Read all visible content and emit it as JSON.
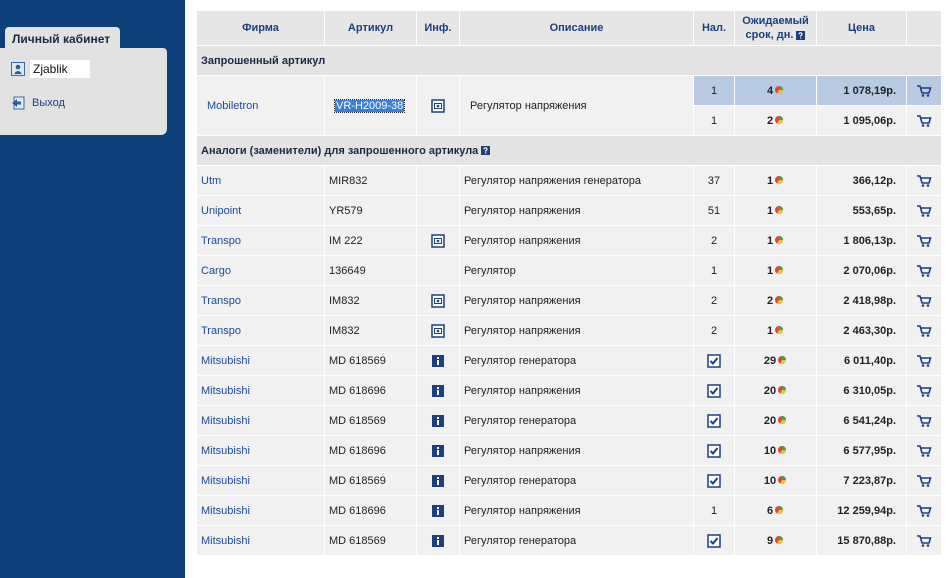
{
  "sidebar": {
    "tab_title": "Личный кабинет",
    "user": "Zjablik",
    "logout": "Выход"
  },
  "table": {
    "headers": [
      "Фирма",
      "Артикул",
      "Инф.",
      "Описание",
      "Нал.",
      "Ожидаемый срок, дн.",
      "Цена"
    ],
    "requested": {
      "section_title": "Запрошенный артикул",
      "firm": "Mobiletron",
      "article": "VR-H2009-38",
      "info": "photo",
      "description": "Регулятор напряжения",
      "offers": [
        {
          "stock": 1,
          "days": 4,
          "price": "1 078,19р."
        },
        {
          "stock": 1,
          "days": 2,
          "price": "1 095,06р."
        }
      ]
    },
    "analogs": {
      "section_title": "Аналоги (заменители) для запрошенного артикула",
      "rows": [
        {
          "firm": "Utm",
          "article": "MIR832",
          "info": null,
          "description": "Регулятор напряжения генератора",
          "stock": 37,
          "days": 1,
          "price": "366,12р."
        },
        {
          "firm": "Unipoint",
          "article": "YR579",
          "info": null,
          "description": "Регулятор напряжения",
          "stock": 51,
          "days": 1,
          "price": "553,65р."
        },
        {
          "firm": "Transpo",
          "article": "IM 222",
          "info": "photo",
          "description": "Регулятор напряжения",
          "stock": 2,
          "days": 1,
          "price": "1 806,13р."
        },
        {
          "firm": "Cargo",
          "article": "136649",
          "info": null,
          "description": "Регулятор",
          "stock": 1,
          "days": 1,
          "price": "2 070,06р."
        },
        {
          "firm": "Transpo",
          "article": "IM832",
          "info": "photo",
          "description": "Регулятор напряжения",
          "stock": 2,
          "days": 2,
          "price": "2 418,98р."
        },
        {
          "firm": "Transpo",
          "article": "IM832",
          "info": "photo",
          "description": "Регулятор напряжения",
          "stock": 2,
          "days": 1,
          "price": "2 463,30р."
        },
        {
          "firm": "Mitsubishi",
          "article": "MD 618569",
          "info": "info",
          "description": "Регулятор генератора",
          "stock": null,
          "days": 29,
          "price": "6 011,40р."
        },
        {
          "firm": "Mitsubishi",
          "article": "MD 618696",
          "info": "info",
          "description": "Регулятор напряжения",
          "stock": null,
          "days": 20,
          "price": "6 310,05р."
        },
        {
          "firm": "Mitsubishi",
          "article": "MD 618569",
          "info": "info",
          "description": "Регулятор генератора",
          "stock": null,
          "days": 20,
          "price": "6 541,24р."
        },
        {
          "firm": "Mitsubishi",
          "article": "MD 618696",
          "info": "info",
          "description": "Регулятор напряжения",
          "stock": null,
          "days": 10,
          "price": "6 577,95р."
        },
        {
          "firm": "Mitsubishi",
          "article": "MD 618569",
          "info": "info",
          "description": "Регулятор генератора",
          "stock": null,
          "days": 10,
          "price": "7 223,87р."
        },
        {
          "firm": "Mitsubishi",
          "article": "MD 618696",
          "info": "info",
          "description": "Регулятор напряжения",
          "stock": 1,
          "days": 6,
          "price": "12 259,94р."
        },
        {
          "firm": "Mitsubishi",
          "article": "MD 618569",
          "info": "info",
          "description": "Регулятор генератора",
          "stock": null,
          "days": 9,
          "price": "15 870,88р."
        }
      ]
    }
  }
}
